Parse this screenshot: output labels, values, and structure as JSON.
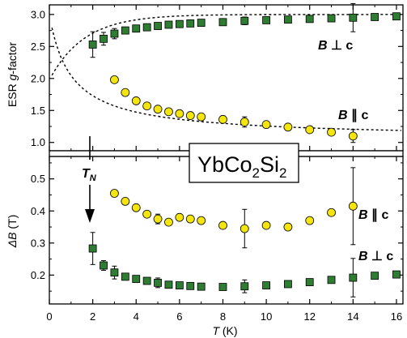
{
  "chart_data": {
    "type": "scatter",
    "xlabel": "T (K)",
    "xlabel_main": "T",
    "xlabel_unit": " (K)",
    "xlim": [
      0,
      16.3
    ],
    "xticks": [
      0,
      2,
      4,
      6,
      8,
      10,
      12,
      14,
      16
    ],
    "compound": {
      "base1": "YbCo",
      "sub1": "2",
      "base2": "Si",
      "sub2": "2"
    },
    "tn_label": {
      "main": "T",
      "sub": "N"
    },
    "panels": [
      {
        "id": "top",
        "ylabel_prefix": "ESR ",
        "ylabel_italic": "g",
        "ylabel_suffix": "-factor",
        "ylim": [
          0.87,
          3.15
        ],
        "yticks": [
          "1.0",
          "1.5",
          "2.0",
          "2.5",
          "3.0"
        ],
        "series": [
          {
            "name": "B ⊥ c",
            "label_b": "B",
            "label_rest": " ⊥ c",
            "marker": "square",
            "color": "#2e7d32",
            "x": [
              2,
              2.5,
              3,
              3.5,
              4,
              4.5,
              5,
              5.5,
              6,
              6.5,
              7,
              8,
              9,
              10,
              11,
              12,
              13,
              14,
              15,
              16
            ],
            "y": [
              2.53,
              2.62,
              2.7,
              2.75,
              2.78,
              2.8,
              2.82,
              2.84,
              2.85,
              2.86,
              2.87,
              2.88,
              2.9,
              2.91,
              2.92,
              2.93,
              2.94,
              2.95,
              2.96,
              2.97
            ],
            "err": [
              0.2,
              0.1,
              0.08,
              0,
              0,
              0,
              0,
              0,
              0,
              0,
              0,
              0,
              0.06,
              0,
              0,
              0,
              0,
              0.22,
              0,
              0
            ]
          },
          {
            "name": "B ∥ c",
            "label_b": "B",
            "label_rest": " ∥ c",
            "marker": "circle",
            "color": "#f5e50f",
            "x": [
              3,
              3.5,
              4,
              4.5,
              5,
              5.5,
              6,
              6.5,
              7,
              8,
              9,
              10,
              11,
              12,
              13,
              14
            ],
            "y": [
              1.98,
              1.78,
              1.65,
              1.57,
              1.52,
              1.48,
              1.45,
              1.42,
              1.4,
              1.36,
              1.32,
              1.28,
              1.24,
              1.2,
              1.16,
              1.1
            ],
            "err": [
              0,
              0,
              0,
              0,
              0,
              0,
              0,
              0,
              0,
              0,
              0.08,
              0,
              0,
              0,
              0,
              0.1
            ]
          }
        ]
      },
      {
        "id": "bottom",
        "ylabel_prefix": "",
        "ylabel_italic": "ΔB",
        "ylabel_suffix": " (T)",
        "ylim": [
          0.11,
          0.57
        ],
        "yticks": [
          "0.2",
          "0.3",
          "0.4",
          "0.5"
        ],
        "series": [
          {
            "name": "B ∥ c",
            "label_b": "B",
            "label_rest": " ∥ c",
            "marker": "circle",
            "color": "#f5e50f",
            "x": [
              3,
              3.5,
              4,
              4.5,
              5,
              5.5,
              6,
              6.5,
              7,
              8,
              9,
              10,
              11,
              12,
              13,
              14
            ],
            "y": [
              0.455,
              0.43,
              0.41,
              0.39,
              0.375,
              0.365,
              0.38,
              0.375,
              0.37,
              0.355,
              0.345,
              0.355,
              0.35,
              0.37,
              0.395,
              0.415
            ],
            "err": [
              0,
              0,
              0,
              0,
              0.015,
              0,
              0,
              0,
              0,
              0,
              0.06,
              0,
              0,
              0,
              0,
              0.12
            ]
          },
          {
            "name": "B ⊥ c",
            "label_b": "B",
            "label_rest": " ⊥ c",
            "marker": "square",
            "color": "#2e7d32",
            "x": [
              2,
              2.5,
              3,
              3.5,
              4,
              4.5,
              5,
              5.5,
              6,
              6.5,
              7,
              8,
              9,
              10,
              11,
              12,
              13,
              14,
              15,
              16
            ],
            "y": [
              0.283,
              0.23,
              0.208,
              0.195,
              0.188,
              0.182,
              0.176,
              0.17,
              0.168,
              0.166,
              0.164,
              0.163,
              0.165,
              0.168,
              0.172,
              0.178,
              0.185,
              0.192,
              0.198,
              0.202
            ],
            "err": [
              0.05,
              0.015,
              0.02,
              0,
              0,
              0,
              0.015,
              0,
              0,
              0,
              0,
              0,
              0.02,
              0,
              0,
              0,
              0,
              0.06,
              0,
              0
            ]
          }
        ]
      }
    ]
  }
}
